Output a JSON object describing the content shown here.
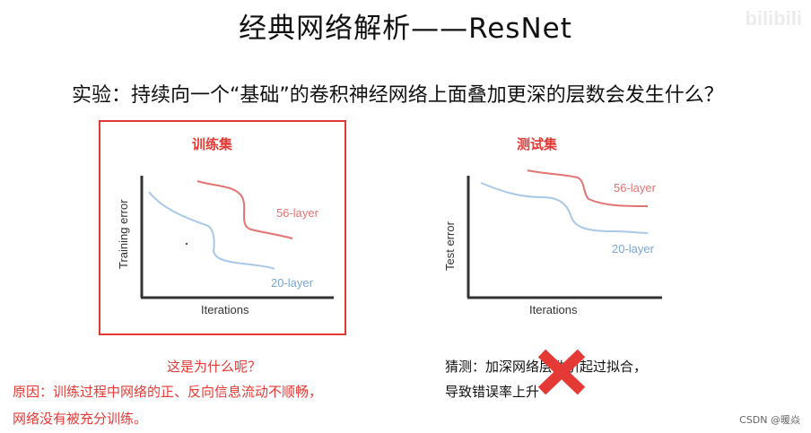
{
  "title": "经典网络解析——ResNet",
  "question": "实验：持续向一个“基础”的卷积神经网络上面叠加更深的层数会发生什么？",
  "watermark": "bilibili",
  "credit": "CSDN @暖焱",
  "charts": [
    {
      "panel_label": "训练集",
      "ylabel": "Training error",
      "xlabel": "Iterations",
      "series": [
        {
          "name": "56-layer",
          "color": "#e57373"
        },
        {
          "name": "20-layer",
          "color": "#7aa6d6"
        }
      ]
    },
    {
      "panel_label": "测试集",
      "ylabel": "Test error",
      "xlabel": "Iterations",
      "series": [
        {
          "name": "56-layer",
          "color": "#e57373"
        },
        {
          "name": "20-layer",
          "color": "#7aa6d6"
        }
      ]
    }
  ],
  "why": "这是为什么呢？",
  "reason_lines": [
    "原因：训练过程中网络的正、反向信息流动不顺畅，",
    "网络没有被充分训练。"
  ],
  "guess_lines": [
    "猜测：加深网络层数引起过拟合，",
    "导致错误率上升"
  ],
  "highlight_color": "#e53935"
}
